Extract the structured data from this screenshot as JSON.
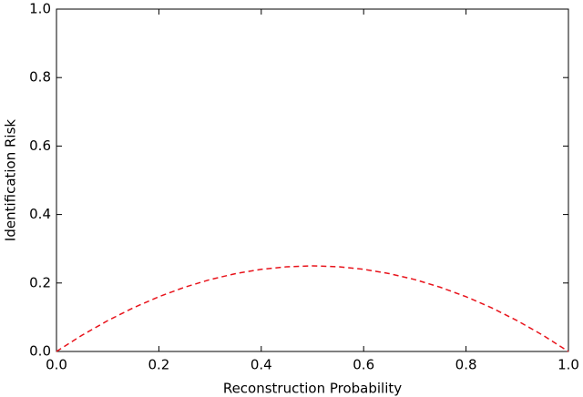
{
  "chart_data": {
    "type": "line",
    "x_label": "Reconstruction Probability",
    "y_label": "Identification Risk",
    "x": [
      0,
      0.05,
      0.1,
      0.15,
      0.2,
      0.25,
      0.3,
      0.35,
      0.4,
      0.45,
      0.5,
      0.55,
      0.6,
      0.65,
      0.7,
      0.75,
      0.8,
      0.85,
      0.9,
      0.95,
      1
    ],
    "series": [
      {
        "color": "#e8131b",
        "dashed": true,
        "values": [
          0,
          0.0475,
          0.09,
          0.1275,
          0.16,
          0.1875,
          0.21,
          0.2275,
          0.24,
          0.2475,
          0.25,
          0.2475,
          0.24,
          0.2275,
          0.21,
          0.1875,
          0.16,
          0.1275,
          0.09,
          0.0475,
          0
        ]
      }
    ],
    "xlim": [
      0,
      1
    ],
    "ylim": [
      0,
      1
    ],
    "xticks": [
      {
        "value": 0,
        "label": "0.0"
      },
      0.2,
      0.4,
      0.6,
      0.8,
      {
        "value": 1,
        "label": "1.0"
      }
    ],
    "yticks": [
      {
        "value": 0,
        "label": "0.0"
      },
      0.2,
      0.4,
      0.6,
      0.8,
      {
        "value": 1,
        "label": "1.0"
      }
    ],
    "grid": false
  }
}
